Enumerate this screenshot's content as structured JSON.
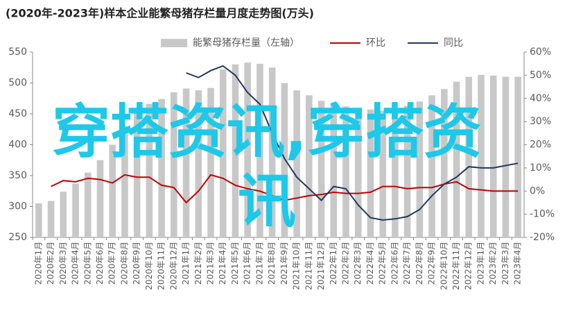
{
  "chart_data": {
    "type": "bar-line",
    "title": "(2020年-2023年)样本企业能繁母猪存栏量月度走势图(万头)",
    "watermark": "穿搭资讯,穿搭资讯",
    "categories": [
      "2020年1月",
      "2020年2月",
      "2020年3月",
      "2020年4月",
      "2020年5月",
      "2020年6月",
      "2020年7月",
      "2020年8月",
      "2020年9月",
      "2020年10月",
      "2020年11月",
      "2020年12月",
      "2021年1月",
      "2021年2月",
      "2021年3月",
      "2021年4月",
      "2021年5月",
      "2021年6月",
      "2021年7月",
      "2021年8月",
      "2021年9月",
      "2021年10月",
      "2021年11月",
      "2021年12月",
      "2022年1月",
      "2022年2月",
      "2022年3月",
      "2022年4月",
      "2022年5月",
      "2022年6月",
      "2022年7月",
      "2022年8月",
      "2022年9月",
      "2022年10月",
      "2022年11月",
      "2022年12月",
      "2023年1月",
      "2023年2月",
      "2023年3月",
      "2023年4月"
    ],
    "series": [
      {
        "name": "能繁母猪存栏量（左轴）",
        "type": "bar",
        "color": "#c8c8c8",
        "values": [
          305,
          309,
          324,
          337,
          355,
          375,
          400,
          430,
          452,
          466,
          474,
          485,
          491,
          488,
          492,
          522,
          530,
          533,
          531,
          525,
          500,
          488,
          480,
          471,
          466,
          462,
          459,
          457,
          455,
          458,
          463,
          470,
          480,
          490,
          502,
          510,
          513,
          512,
          510,
          510
        ]
      },
      {
        "name": "环比",
        "type": "line",
        "axis": "y2",
        "color": "#c00000",
        "values": [
          null,
          2,
          4.5,
          4,
          5.5,
          5,
          3.5,
          7,
          6,
          6,
          2.5,
          1.5,
          -5,
          0,
          7,
          5.5,
          2.5,
          1,
          0,
          -2,
          -4,
          -3,
          -2,
          -1.5,
          -0.5,
          -1,
          -1,
          -0.5,
          2,
          2,
          1,
          1.5,
          1.5,
          3,
          4,
          1,
          0.5,
          0,
          0,
          0
        ]
      },
      {
        "name": "同比",
        "type": "line",
        "axis": "y2",
        "color": "#1f3864",
        "values": [
          null,
          null,
          null,
          null,
          null,
          null,
          null,
          null,
          null,
          null,
          null,
          null,
          51,
          49,
          52,
          54,
          50,
          42.5,
          37.5,
          25,
          14,
          6,
          1,
          -4,
          2,
          1,
          -6,
          -11.5,
          -12.5,
          -12,
          -11,
          -8,
          -2,
          3,
          6,
          10.5,
          10,
          10,
          11,
          12
        ]
      }
    ],
    "ylim": [
      250,
      550
    ],
    "yticks": [
      250,
      300,
      350,
      400,
      450,
      500,
      550
    ],
    "y2lim": [
      -20,
      60
    ],
    "y2ticks": [
      {
        "value": -20,
        "label": "-20%"
      },
      {
        "value": -10,
        "label": "-10%"
      },
      {
        "value": 0,
        "label": "0%"
      },
      {
        "value": 10,
        "label": "10%"
      },
      {
        "value": 20,
        "label": "20%"
      },
      {
        "value": 30,
        "label": "30%"
      },
      {
        "value": 40,
        "label": "40%"
      },
      {
        "value": 50,
        "label": "50%"
      },
      {
        "value": 60,
        "label": "60%"
      }
    ],
    "legend": "top"
  }
}
